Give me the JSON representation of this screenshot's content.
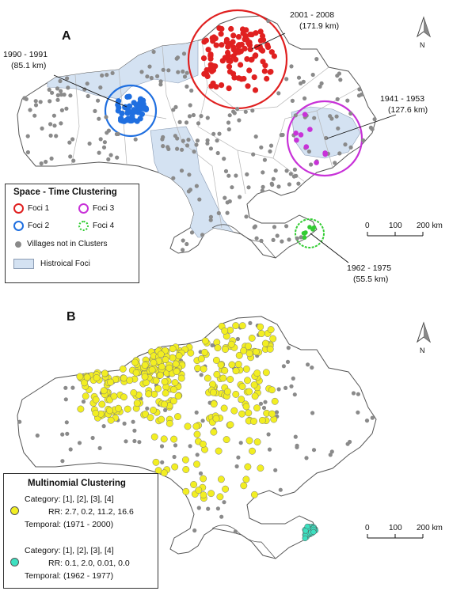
{
  "panel_a": {
    "label": "A",
    "annotations": [
      {
        "years": "2001 - 2008",
        "radius": "(171.9 km)"
      },
      {
        "years": "1990 - 1991",
        "radius": "(85.1 km)"
      },
      {
        "years": "1941 - 1953",
        "radius": "(127.6 km)"
      },
      {
        "years": "1962 - 1975",
        "radius": "(55.5 km)"
      }
    ],
    "north_label": "N",
    "scale": {
      "t0": "0",
      "t1": "100",
      "t2": "200 km"
    },
    "legend": {
      "title": "Space - Time Clustering",
      "foci1": "Foci 1",
      "foci2": "Foci 2",
      "foci3": "Foci 3",
      "foci4": "Foci 4",
      "villages": "Villages not in Clusters",
      "historical": "Histroical Foci"
    },
    "colors": {
      "foci1": "#e02020",
      "foci2": "#1f6fe0",
      "foci3": "#c832d8",
      "foci4": "#33cc33",
      "villages": "#8a8a8a",
      "historical": "#d4e2f2"
    }
  },
  "panel_b": {
    "label": "B",
    "north_label": "N",
    "scale": {
      "t0": "0",
      "t1": "100",
      "t2": "200 km"
    },
    "legend": {
      "title": "Multinomial Clustering",
      "cluster1": {
        "category": "Category:  [1],   [2],    [3],    [4]",
        "rr": "RR:  2.7, 0.2, 11.2, 16.6",
        "temporal": "Temporal:   (1971 - 2000)"
      },
      "cluster2": {
        "category": "Category:  [1],   [2],    [3],    [4]",
        "rr": "RR:  0.1, 2.0, 0.01, 0.0",
        "temporal": "Temporal:   (1962 - 1977)"
      }
    },
    "colors": {
      "cluster1": "#f2ee22",
      "cluster2": "#3de0c0",
      "villages": "#8a8a8a"
    }
  }
}
